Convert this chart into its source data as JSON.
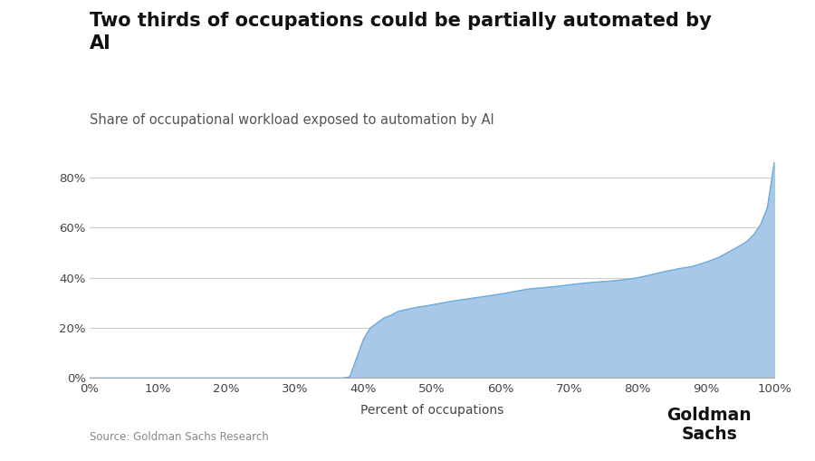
{
  "title": "Two thirds of occupations could be partially automated by\nAI",
  "subtitle": "Share of occupational workload exposed to automation by AI",
  "xlabel": "Percent of occupations",
  "source": "Source: Goldman Sachs Research",
  "fill_color": "#a8c8e8",
  "line_color": "#6aabe0",
  "background_color": "#ffffff",
  "title_fontsize": 15,
  "subtitle_fontsize": 10.5,
  "tick_fontsize": 9.5,
  "xlabel_fontsize": 10,
  "xlim": [
    0,
    1.0
  ],
  "ylim": [
    0,
    0.92
  ],
  "yticks": [
    0,
    0.2,
    0.4,
    0.6,
    0.8
  ],
  "xticks": [
    0,
    0.1,
    0.2,
    0.3,
    0.4,
    0.5,
    0.6,
    0.7,
    0.8,
    0.9,
    1.0
  ],
  "x": [
    0.0,
    0.05,
    0.1,
    0.15,
    0.2,
    0.25,
    0.3,
    0.35,
    0.37,
    0.38,
    0.39,
    0.4,
    0.41,
    0.42,
    0.43,
    0.44,
    0.45,
    0.46,
    0.47,
    0.48,
    0.49,
    0.5,
    0.51,
    0.52,
    0.53,
    0.54,
    0.55,
    0.56,
    0.57,
    0.58,
    0.59,
    0.6,
    0.62,
    0.64,
    0.66,
    0.68,
    0.7,
    0.72,
    0.74,
    0.76,
    0.78,
    0.8,
    0.82,
    0.84,
    0.86,
    0.88,
    0.9,
    0.91,
    0.92,
    0.93,
    0.94,
    0.95,
    0.96,
    0.97,
    0.98,
    0.99,
    1.0
  ],
  "y": [
    0.0,
    0.0,
    0.0,
    0.0,
    0.0,
    0.0,
    0.0,
    0.0,
    0.0,
    0.005,
    0.08,
    0.155,
    0.2,
    0.22,
    0.24,
    0.25,
    0.265,
    0.272,
    0.278,
    0.283,
    0.287,
    0.292,
    0.297,
    0.302,
    0.307,
    0.311,
    0.315,
    0.319,
    0.323,
    0.327,
    0.331,
    0.335,
    0.345,
    0.355,
    0.36,
    0.365,
    0.372,
    0.378,
    0.383,
    0.387,
    0.392,
    0.4,
    0.412,
    0.425,
    0.436,
    0.445,
    0.462,
    0.472,
    0.483,
    0.498,
    0.513,
    0.528,
    0.545,
    0.572,
    0.612,
    0.68,
    0.86
  ]
}
